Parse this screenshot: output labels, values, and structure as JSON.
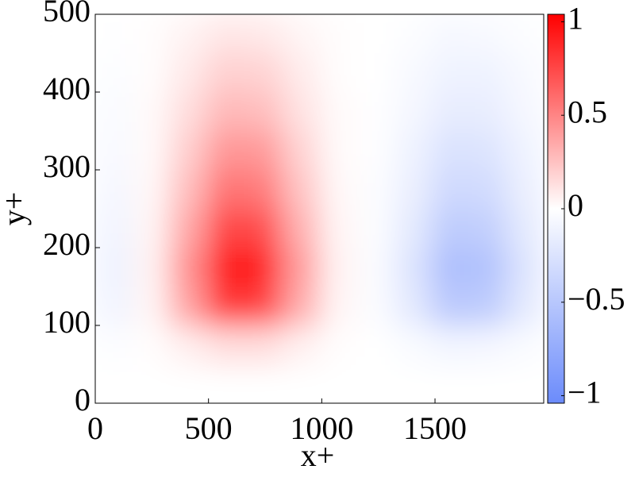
{
  "chart_data": {
    "type": "heatmap",
    "xlabel": "x+",
    "ylabel": "y+",
    "x_edges": [
      0,
      165,
      330,
      495,
      660,
      825,
      990,
      1155,
      1320,
      1485,
      1650,
      1815,
      1980
    ],
    "y_edges": [
      0,
      50,
      100,
      150,
      200,
      250,
      300,
      350,
      400,
      450,
      500
    ],
    "z": [
      [
        0,
        0,
        0,
        0,
        0,
        0,
        0,
        0,
        0,
        0,
        0,
        0
      ],
      [
        -0.02,
        0.01,
        0.07,
        0.14,
        0.14,
        0.06,
        0.01,
        0,
        -0.04,
        -0.09,
        -0.08,
        -0.04
      ],
      [
        -0.1,
        0.04,
        0.38,
        0.81,
        0.77,
        0.34,
        0.04,
        -0.03,
        -0.2,
        -0.48,
        -0.46,
        -0.2
      ],
      [
        -0.12,
        0.05,
        0.45,
        0.95,
        0.9,
        0.4,
        0.05,
        -0.03,
        -0.24,
        -0.57,
        -0.54,
        -0.24
      ],
      [
        -0.1,
        0.04,
        0.36,
        0.76,
        0.72,
        0.32,
        0.04,
        -0.02,
        -0.19,
        -0.46,
        -0.43,
        -0.19
      ],
      [
        -0.07,
        0.03,
        0.27,
        0.57,
        0.54,
        0.24,
        0.03,
        -0.02,
        -0.14,
        -0.34,
        -0.32,
        -0.14
      ],
      [
        -0.05,
        0.02,
        0.2,
        0.43,
        0.41,
        0.18,
        0.02,
        -0.01,
        -0.11,
        -0.26,
        -0.24,
        -0.11
      ],
      [
        -0.04,
        0.02,
        0.14,
        0.29,
        0.27,
        0.12,
        0.02,
        -0.01,
        -0.07,
        -0.17,
        -0.16,
        -0.07
      ],
      [
        -0.02,
        0.01,
        0.09,
        0.19,
        0.18,
        0.08,
        0.01,
        0,
        -0.05,
        -0.11,
        -0.11,
        -0.05
      ],
      [
        -0.01,
        0.01,
        0.05,
        0.1,
        0.09,
        0.04,
        0.01,
        0,
        -0.02,
        -0.06,
        -0.05,
        -0.02
      ]
    ],
    "xlim": [
      0,
      1980
    ],
    "xticks": [
      0,
      500,
      1000,
      1500
    ],
    "ylim": [
      0,
      500
    ],
    "yticks": [
      0,
      100,
      200,
      300,
      400,
      500
    ],
    "clim": [
      -1.04,
      1.04
    ],
    "cticks": [
      {
        "value": -1,
        "label": "−1"
      },
      {
        "value": -0.5,
        "label": "−0.5"
      },
      0,
      0.5,
      1
    ],
    "colormap": [
      "#6b8bfb",
      "#ffffff",
      "#ff0000"
    ]
  }
}
